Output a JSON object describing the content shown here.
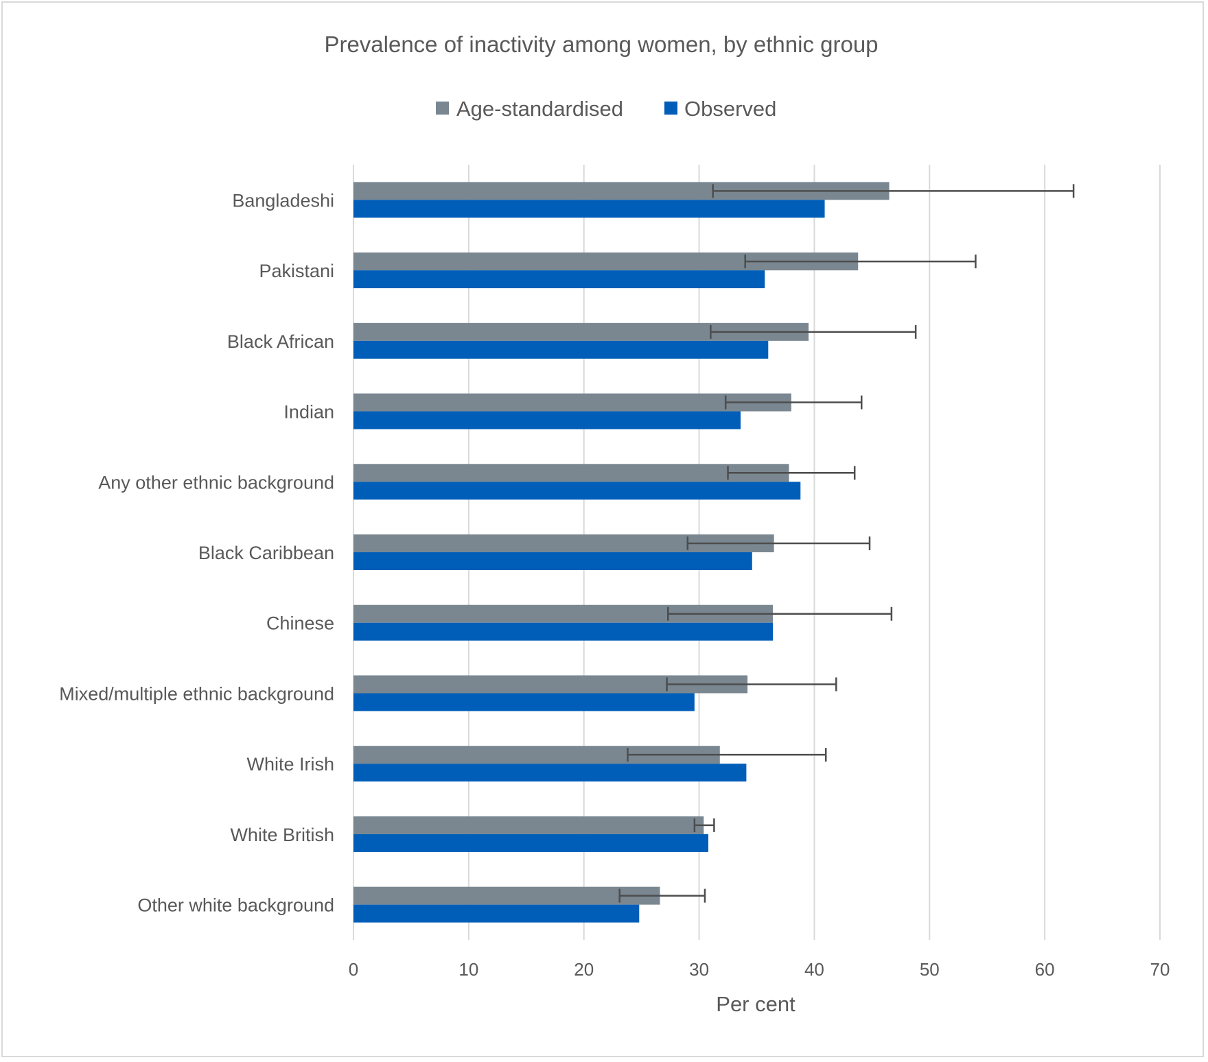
{
  "chart_data": {
    "type": "bar",
    "orientation": "horizontal",
    "title": "Prevalence of inactivity among women, by ethnic group",
    "xlabel": "Per cent",
    "ylabel": "",
    "xlim": [
      0,
      70
    ],
    "x_ticks": [
      0,
      10,
      20,
      30,
      40,
      50,
      60,
      70
    ],
    "grid": true,
    "legend_position": "top",
    "categories": [
      "Bangladeshi",
      "Pakistani",
      "Black African",
      "Indian",
      "Any other ethnic background",
      "Black Caribbean",
      "Chinese",
      "Mixed/multiple ethnic background",
      "White Irish",
      "White British",
      "Other white background"
    ],
    "series": [
      {
        "name": "Age-standardised",
        "color": "#7a8791",
        "values": [
          46.5,
          43.8,
          39.5,
          38.0,
          37.8,
          36.5,
          36.4,
          34.2,
          31.8,
          30.4,
          26.6
        ],
        "error_low": [
          31.2,
          34.0,
          31.0,
          32.3,
          32.5,
          29.0,
          27.3,
          27.2,
          23.8,
          29.6,
          23.1
        ],
        "error_high": [
          62.5,
          54.0,
          48.8,
          44.1,
          43.5,
          44.8,
          46.7,
          41.9,
          41.0,
          31.3,
          30.5
        ]
      },
      {
        "name": "Observed",
        "color": "#005eb8",
        "values": [
          40.9,
          35.7,
          36.0,
          33.6,
          38.8,
          34.6,
          36.4,
          29.6,
          34.1,
          30.8,
          24.8
        ]
      }
    ]
  }
}
